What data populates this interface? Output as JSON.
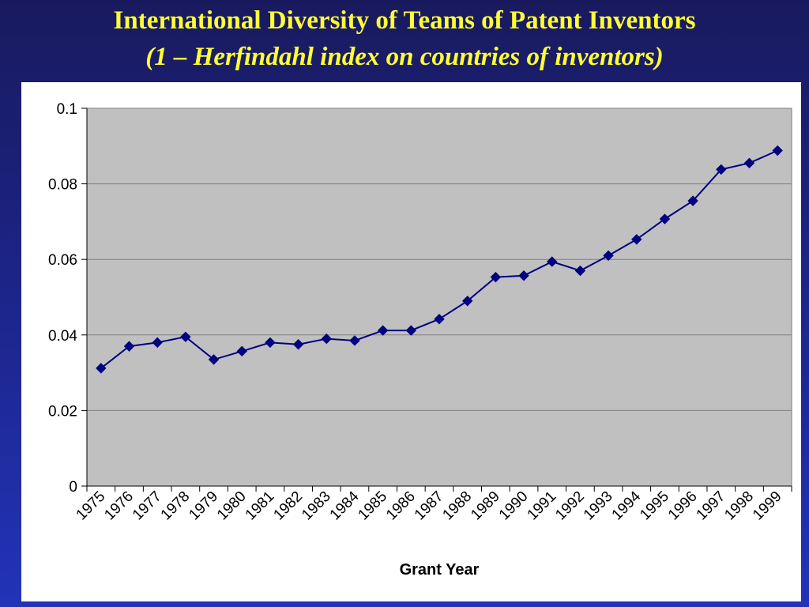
{
  "slide": {
    "title": "International Diversity of Teams of Patent Inventors",
    "subtitle": "(1 – Herfindahl index on countries of inventors)"
  },
  "colors": {
    "background": "#1c2486",
    "title_text": "#ffff33",
    "plot_area": "#c0c0c0",
    "series_line": "#000080"
  },
  "chart_data": {
    "type": "line",
    "title": "",
    "xlabel": "Grant Year",
    "ylabel": "",
    "categories": [
      "1975",
      "1976",
      "1977",
      "1978",
      "1979",
      "1980",
      "1981",
      "1982",
      "1983",
      "1984",
      "1985",
      "1986",
      "1987",
      "1988",
      "1989",
      "1990",
      "1991",
      "1992",
      "1993",
      "1994",
      "1995",
      "1996",
      "1997",
      "1998",
      "1999"
    ],
    "series": [
      {
        "marker": "diamond",
        "values": [
          0.0312,
          0.037,
          0.038,
          0.0395,
          0.0335,
          0.0357,
          0.038,
          0.0375,
          0.039,
          0.0385,
          0.0412,
          0.0412,
          0.0442,
          0.049,
          0.0553,
          0.0557,
          0.0594,
          0.057,
          0.061,
          0.0653,
          0.0707,
          0.0755,
          0.0838,
          0.0855,
          0.0888
        ]
      }
    ],
    "ylim": [
      0,
      0.1
    ],
    "yticks": [
      "0",
      "0.02",
      "0.04",
      "0.06",
      "0.08",
      "0.1"
    ],
    "grid": true,
    "legend": "none"
  }
}
